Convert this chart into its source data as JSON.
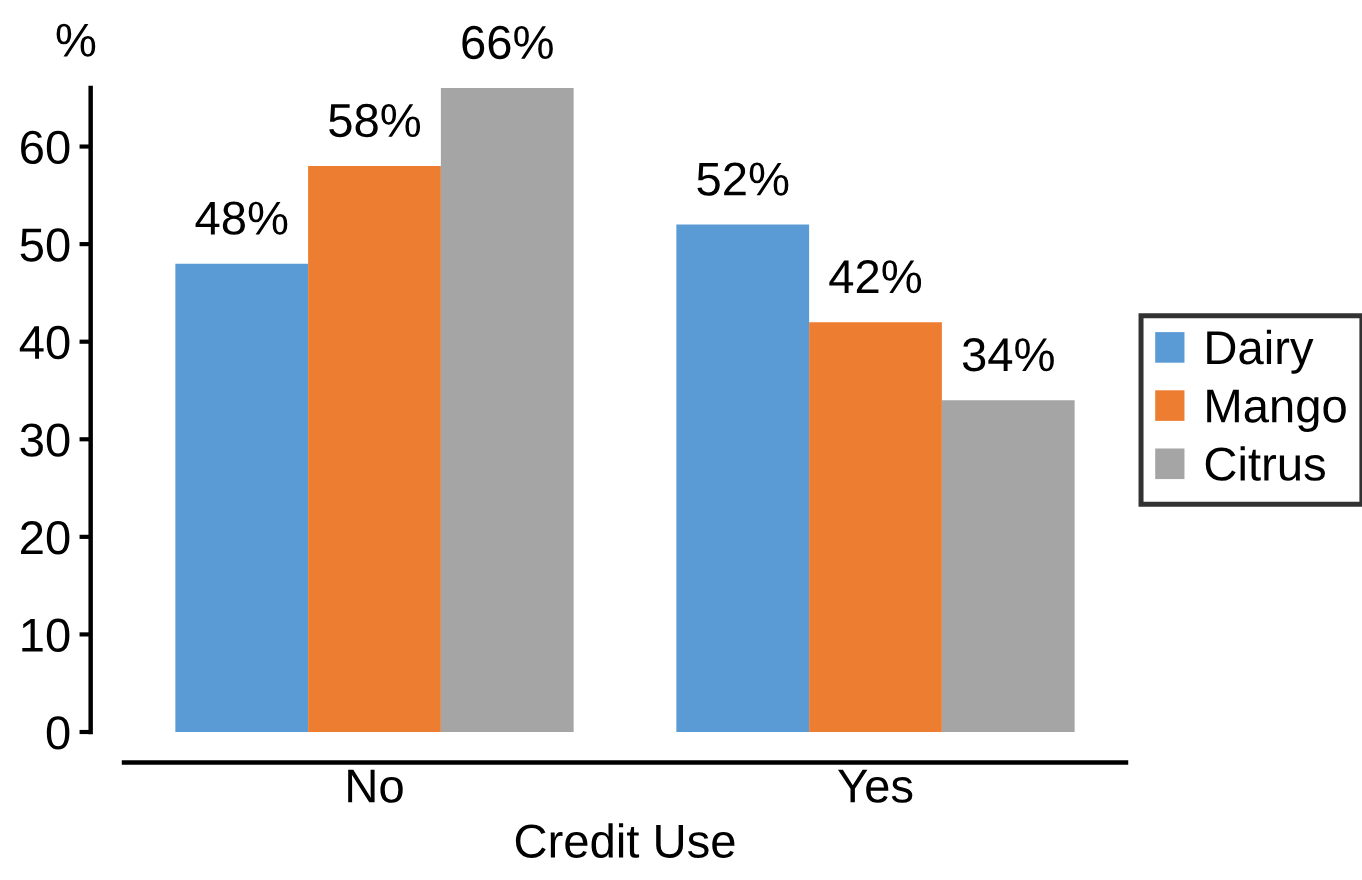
{
  "chart_data": {
    "type": "bar",
    "xlabel": "Credit Use",
    "ylabel": "%",
    "categories": [
      "No",
      "Yes"
    ],
    "series": [
      {
        "name": "Dairy",
        "color": "#5b9bd5",
        "values": [
          48,
          52
        ],
        "value_labels": [
          "48%",
          "52%"
        ]
      },
      {
        "name": "Mango",
        "color": "#ed7d31",
        "values": [
          58,
          42
        ],
        "value_labels": [
          "58%",
          "42%"
        ]
      },
      {
        "name": "Citrus",
        "color": "#a5a5a5",
        "values": [
          66,
          34
        ],
        "value_labels": [
          "66%",
          "34%"
        ]
      }
    ],
    "ylim": [
      0,
      66
    ],
    "yticks": [
      0,
      10,
      20,
      30,
      40,
      50,
      60
    ],
    "grid": false,
    "legend": "right"
  }
}
